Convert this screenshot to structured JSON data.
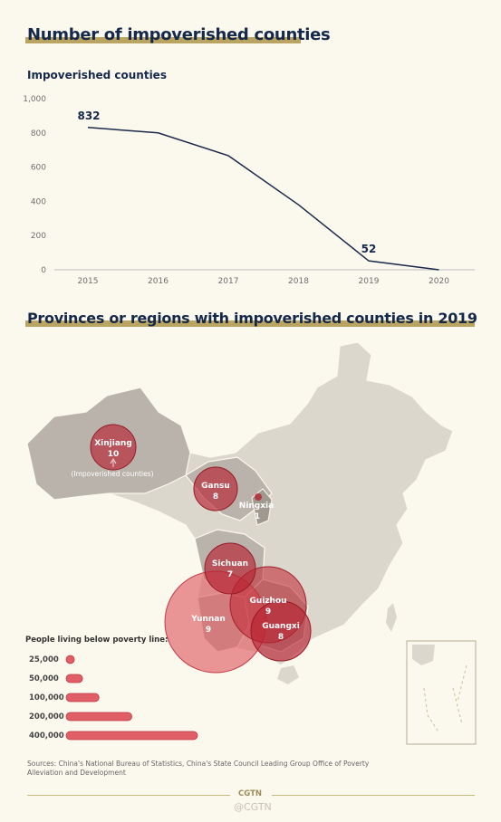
{
  "section1": {
    "title": "Number of impoverished counties"
  },
  "section2": {
    "title": "Provinces or regions with impoverished counties in 2019"
  },
  "chart_data": {
    "type": "line",
    "ylabel": "Impoverished counties",
    "x": [
      "2015",
      "2016",
      "2017",
      "2018",
      "2019",
      "2020"
    ],
    "values": [
      832,
      800,
      667,
      380,
      52,
      0
    ],
    "ylim": [
      0,
      1000
    ],
    "yticks": [
      "0",
      "200",
      "400",
      "600",
      "800",
      "1,000"
    ],
    "data_labels": {
      "2015": "832",
      "2019": "52"
    },
    "line_color": "#1b2a4a",
    "grid": false
  },
  "map": {
    "unit_note": "(Impoverished counties)",
    "regions": [
      {
        "name": "Xinjiang",
        "count": "10"
      },
      {
        "name": "Gansu",
        "count": "8"
      },
      {
        "name": "Ningxia",
        "count": "1"
      },
      {
        "name": "Sichuan",
        "count": "7"
      },
      {
        "name": "Guizhou",
        "count": "9"
      },
      {
        "name": "Yunnan",
        "count": "9"
      },
      {
        "name": "Guangxi",
        "count": "8"
      }
    ],
    "legend": {
      "title": "People living below poverty line:",
      "items": [
        "25,000",
        "50,000",
        "100,000",
        "200,000",
        "400,000"
      ],
      "values": [
        25000,
        50000,
        100000,
        200000,
        400000
      ]
    },
    "bubble_color": "#e05f66"
  },
  "sources": "Sources: China's National Bureau of Statistics, China's State Council Leading Group Office of Poverty Alleviation and Development",
  "footer": {
    "logo": "CGTN",
    "watermark": "@CGTN"
  }
}
